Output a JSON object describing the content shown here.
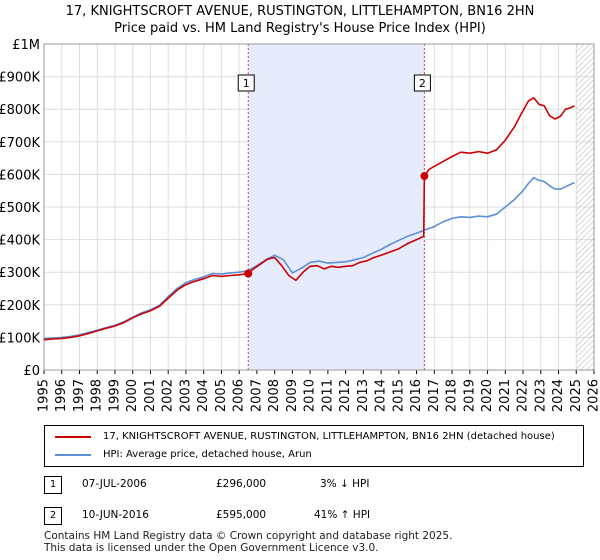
{
  "title_line1": "17, KNIGHTSCROFT AVENUE, RUSTINGTON, LITTLEHAMPTON, BN16 2HN",
  "title_line2": "Price paid vs. HM Land Registry's House Price Index (HPI)",
  "legend": {
    "series1": "17, KNIGHTSCROFT AVENUE, RUSTINGTON, LITTLEHAMPTON, BN16 2HN (detached house)",
    "series2": "HPI: Average price, detached house, Arun"
  },
  "colors": {
    "price": "#cc0000",
    "hpi": "#5b8fd6",
    "shade": "#e6ecfb",
    "hatch": "#b0b0b0",
    "grid": "#dddddd",
    "vline": "#dd4444"
  },
  "transactions": [
    {
      "num": "1",
      "date": "07-JUL-2006",
      "price": "£296,000",
      "hpi": "3% ↓ HPI"
    },
    {
      "num": "2",
      "date": "10-JUN-2016",
      "price": "£595,000",
      "hpi": "41% ↑ HPI"
    }
  ],
  "footer_line1": "Contains HM Land Registry data © Crown copyright and database right 2025.",
  "footer_line2": "This data is licensed under the Open Government Licence v3.0.",
  "chart_data": {
    "type": "line",
    "xlim": [
      1995,
      2026
    ],
    "ylim": [
      0,
      1000000
    ],
    "y_ticks": [
      0,
      100000,
      200000,
      300000,
      400000,
      500000,
      600000,
      700000,
      800000,
      900000,
      1000000
    ],
    "y_tick_labels": [
      "£0",
      "£100K",
      "£200K",
      "£300K",
      "£400K",
      "£500K",
      "£600K",
      "£700K",
      "£800K",
      "£900K",
      "£1M"
    ],
    "x_ticks": [
      1995,
      1996,
      1997,
      1998,
      1999,
      2000,
      2001,
      2002,
      2003,
      2004,
      2005,
      2006,
      2007,
      2008,
      2009,
      2010,
      2011,
      2012,
      2013,
      2014,
      2015,
      2016,
      2017,
      2018,
      2019,
      2020,
      2021,
      2022,
      2023,
      2024,
      2025,
      2026
    ],
    "shaded_region": [
      2006.51,
      2016.44
    ],
    "future_hatch_from": 2025.0,
    "markers": [
      {
        "label": "1",
        "x": 2006.51,
        "y": 296000
      },
      {
        "label": "2",
        "x": 2016.44,
        "y": 595000
      }
    ],
    "series": [
      {
        "name": "17, KNIGHTSCROFT AVENUE, RUSTINGTON, LITTLEHAMPTON, BN16 2HN (detached house)",
        "color": "#cc0000",
        "x": [
          1995,
          1995.5,
          1996,
          1996.5,
          1997,
          1997.5,
          1998,
          1998.5,
          1999,
          1999.5,
          2000,
          2000.5,
          2001,
          2001.5,
          2002,
          2002.5,
          2003,
          2003.5,
          2004,
          2004.5,
          2005,
          2005.5,
          2006,
          2006.51,
          2006.8,
          2007.2,
          2007.6,
          2008,
          2008.4,
          2008.8,
          2009.2,
          2009.6,
          2010,
          2010.4,
          2010.8,
          2011.2,
          2011.6,
          2012,
          2012.4,
          2012.8,
          2013.2,
          2013.6,
          2014,
          2014.5,
          2015,
          2015.5,
          2016,
          2016.4,
          2016.44,
          2016.7,
          2017,
          2017.5,
          2018,
          2018.5,
          2019,
          2019.5,
          2020,
          2020.5,
          2021,
          2021.5,
          2022,
          2022.3,
          2022.6,
          2022.9,
          2023.2,
          2023.5,
          2023.8,
          2024.1,
          2024.4,
          2024.7,
          2024.9
        ],
        "y": [
          93000,
          95000,
          97000,
          100000,
          105000,
          112000,
          120000,
          128000,
          135000,
          145000,
          160000,
          172000,
          182000,
          195000,
          220000,
          245000,
          262000,
          272000,
          280000,
          290000,
          287000,
          290000,
          292000,
          296000,
          310000,
          325000,
          340000,
          345000,
          320000,
          290000,
          275000,
          300000,
          318000,
          320000,
          310000,
          318000,
          315000,
          318000,
          320000,
          330000,
          335000,
          345000,
          352000,
          362000,
          372000,
          388000,
          400000,
          410000,
          595000,
          615000,
          625000,
          640000,
          655000,
          668000,
          665000,
          670000,
          665000,
          675000,
          705000,
          745000,
          795000,
          825000,
          835000,
          815000,
          810000,
          780000,
          770000,
          778000,
          800000,
          805000,
          810000
        ]
      },
      {
        "name": "HPI: Average price, detached house, Arun",
        "color": "#5b8fd6",
        "x": [
          1995,
          1995.5,
          1996,
          1996.5,
          1997,
          1997.5,
          1998,
          1998.5,
          1999,
          1999.5,
          2000,
          2000.5,
          2001,
          2001.5,
          2002,
          2002.5,
          2003,
          2003.5,
          2004,
          2004.5,
          2005,
          2005.5,
          2006,
          2006.5,
          2007,
          2007.5,
          2008,
          2008.5,
          2009,
          2009.5,
          2010,
          2010.5,
          2011,
          2011.5,
          2012,
          2012.5,
          2013,
          2013.5,
          2014,
          2014.5,
          2015,
          2015.5,
          2016,
          2016.5,
          2017,
          2017.5,
          2018,
          2018.5,
          2019,
          2019.5,
          2020,
          2020.5,
          2021,
          2021.5,
          2022,
          2022.3,
          2022.6,
          2022.9,
          2023.2,
          2023.5,
          2023.8,
          2024.1,
          2024.4,
          2024.7,
          2024.9
        ],
        "y": [
          96000,
          98000,
          100000,
          103000,
          108000,
          115000,
          122000,
          130000,
          137000,
          148000,
          162000,
          175000,
          185000,
          198000,
          225000,
          250000,
          268000,
          278000,
          286000,
          296000,
          294000,
          298000,
          300000,
          305000,
          320000,
          338000,
          352000,
          338000,
          298000,
          312000,
          330000,
          334000,
          328000,
          330000,
          332000,
          338000,
          345000,
          358000,
          370000,
          385000,
          398000,
          410000,
          420000,
          430000,
          440000,
          455000,
          465000,
          470000,
          468000,
          472000,
          470000,
          478000,
          500000,
          522000,
          550000,
          572000,
          590000,
          582000,
          578000,
          565000,
          555000,
          555000,
          562000,
          570000,
          575000
        ]
      }
    ]
  }
}
